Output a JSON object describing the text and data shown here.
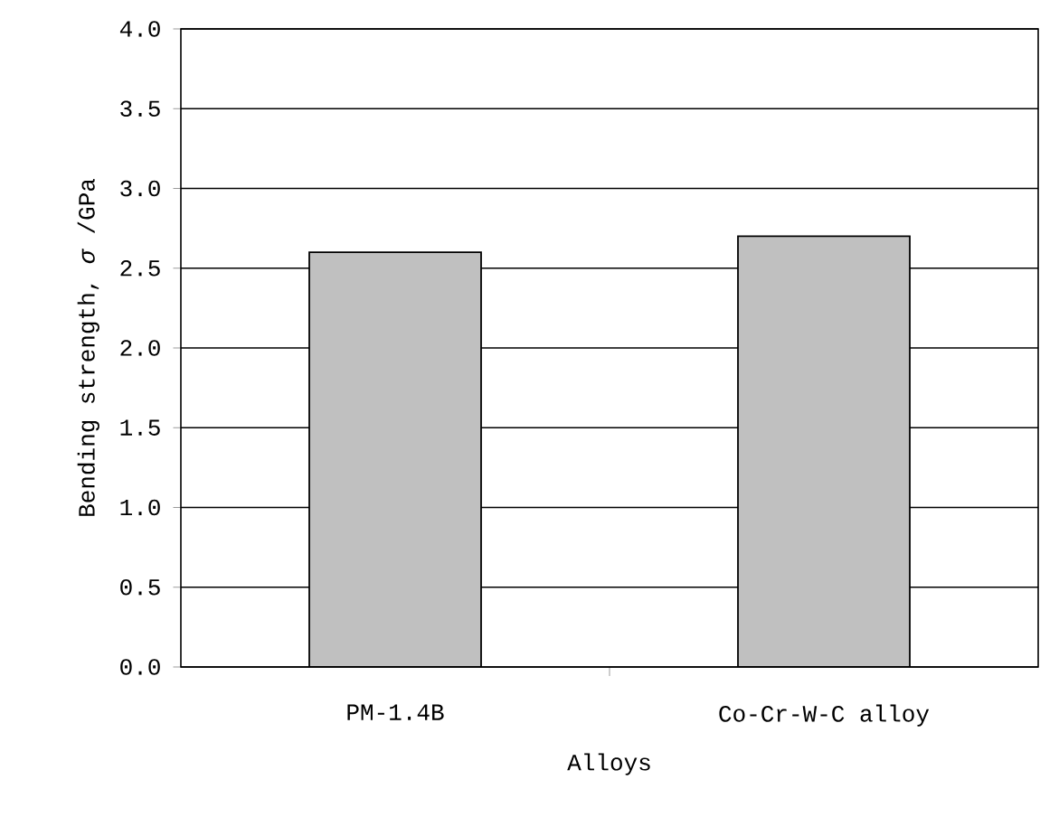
{
  "chart_data": {
    "type": "bar",
    "xlabel": "Alloys",
    "ylabel": "Bending strength, *σ* /GPa",
    "categories": [
      "PM-1.4B",
      "Co-Cr-W-C alloy"
    ],
    "values": [
      2.6,
      2.7
    ],
    "color": "#c0c0c0",
    "ylim": [
      0,
      4.0
    ],
    "yticks": [
      {
        "value": 0,
        "label": "0.0"
      },
      {
        "value": 0.5,
        "label": "0.5"
      },
      {
        "value": 1.0,
        "label": "1.0"
      },
      {
        "value": 1.5,
        "label": "1.5"
      },
      {
        "value": 2.0,
        "label": "2.0"
      },
      {
        "value": 2.5,
        "label": "2.5"
      },
      {
        "value": 3.0,
        "label": "3.0"
      },
      {
        "value": 3.5,
        "label": "3.5"
      },
      {
        "value": 4.0,
        "label": "4.0"
      }
    ],
    "grid": "y"
  }
}
